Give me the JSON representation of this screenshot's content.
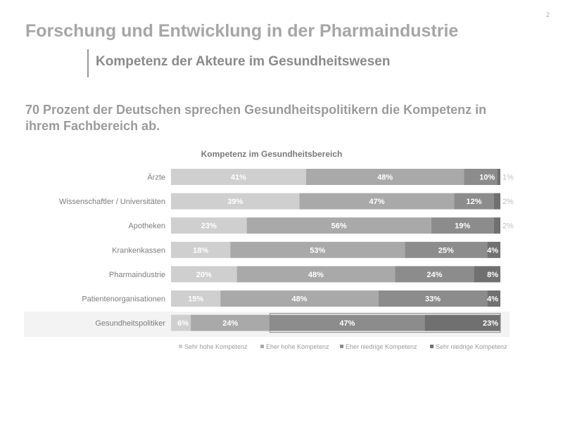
{
  "page": {
    "page_number": "2",
    "title": "Forschung und Entwicklung in der Pharmaindustrie",
    "subtitle": "Kompetenz der Akteure im Gesundheitswesen",
    "headline": "70 Prozent der Deutschen sprechen Gesundheitspolitikern die Kompetenz in ihrem Fachbereich ab."
  },
  "chart_data": {
    "type": "bar",
    "orientation": "horizontal",
    "stacked": true,
    "title": "Kompetenz im Gesundheitsbereich",
    "categories": [
      "Ärzte",
      "Wissenschaftler / Universitäten",
      "Apotheken",
      "Krankenkassen",
      "Pharmaindustrie",
      "Patientenorganisationen",
      "Gesundheitspolitiker"
    ],
    "series": [
      {
        "name": "Sehr hohe Kompetenz",
        "values": [
          41,
          39,
          23,
          18,
          20,
          15,
          6
        ],
        "color": "#cfcfcf"
      },
      {
        "name": "Eher hohe Kompetenz",
        "values": [
          48,
          47,
          56,
          53,
          48,
          48,
          24
        ],
        "color": "#a9a9a9"
      },
      {
        "name": "Eher niedrige Kompetenz",
        "values": [
          10,
          12,
          19,
          25,
          24,
          33,
          47
        ],
        "color": "#8c8c8c"
      },
      {
        "name": "Sehr niedrige Kompetenz",
        "values": [
          1,
          2,
          2,
          4,
          8,
          4,
          23
        ],
        "color": "#707070"
      }
    ],
    "highlighted_category": "Gesundheitspolitiker",
    "value_suffix": "%",
    "xlim": [
      0,
      100
    ],
    "grid": false,
    "legend_position": "bottom"
  }
}
